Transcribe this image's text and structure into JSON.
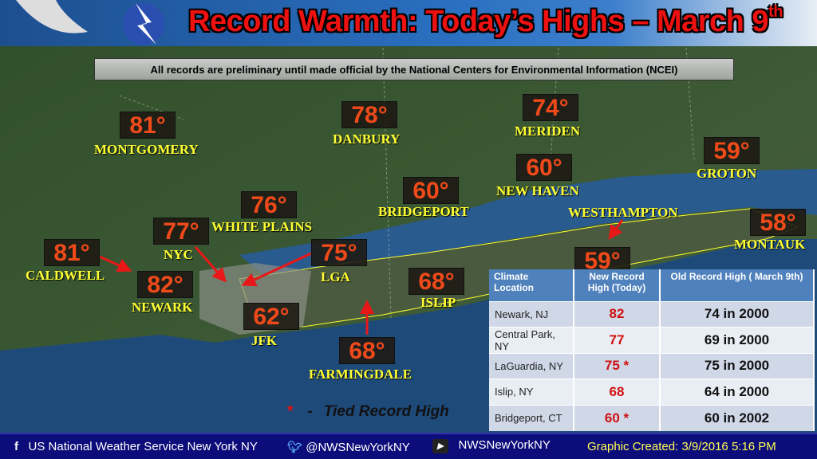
{
  "header": {
    "title": "Record Warmth: Today’s Highs – March 9",
    "title_sup": "th"
  },
  "notice": "All records are preliminary until made official by the National Centers for Environmental Information (NCEI)",
  "stations": [
    {
      "name": "MONTGOMERY",
      "temp": "81°"
    },
    {
      "name": "DANBURY",
      "temp": "78°"
    },
    {
      "name": "MERIDEN",
      "temp": "74°"
    },
    {
      "name": "GROTON",
      "temp": "59°"
    },
    {
      "name": "NEW HAVEN",
      "temp": "60°"
    },
    {
      "name": "BRIDGEPORT",
      "temp": "60°"
    },
    {
      "name": "WHITE PLAINS",
      "temp": "76°"
    },
    {
      "name": "NYC",
      "temp": "77°"
    },
    {
      "name": "CALDWELL",
      "temp": "81°"
    },
    {
      "name": "NEWARK",
      "temp": "82°"
    },
    {
      "name": "LGA",
      "temp": "75°"
    },
    {
      "name": "ISLIP",
      "temp": "68°"
    },
    {
      "name": "JFK",
      "temp": "62°"
    },
    {
      "name": "FARMINGDALE",
      "temp": "68°"
    },
    {
      "name": "WESTHAMPTON",
      "temp": "59°"
    },
    {
      "name": "MONTAUK",
      "temp": "58°"
    }
  ],
  "table": {
    "headers": [
      "Climate Location",
      "New Record High (Today)",
      "Old Record High ( March 9th)"
    ],
    "rows": [
      [
        "Newark, NJ",
        "82",
        "74 in 2000"
      ],
      [
        "Central Park, NY",
        "77",
        "69 in 2000"
      ],
      [
        "LaGuardia, NY",
        "75 *",
        "75 in 2000"
      ],
      [
        "Islip, NY",
        "68",
        "64 in 2000"
      ],
      [
        "Bridgeport, CT",
        "60 *",
        "60 in 2002"
      ]
    ]
  },
  "legend": {
    "symbol": "*",
    "dash": "-",
    "text": "Tied Record High"
  },
  "footer": {
    "facebook": "US National Weather Service New York NY",
    "twitter": "@NWSNewYorkNY",
    "youtube": "NWSNewYorkNY",
    "created": "Graphic Created: 3/9/2016 5:16 PM"
  },
  "colors": {
    "temp": "#f04a1a",
    "label": "#ffff33",
    "title": "#ee1111",
    "footer": "#0c0c7a",
    "table_header": "#4f81bd"
  }
}
